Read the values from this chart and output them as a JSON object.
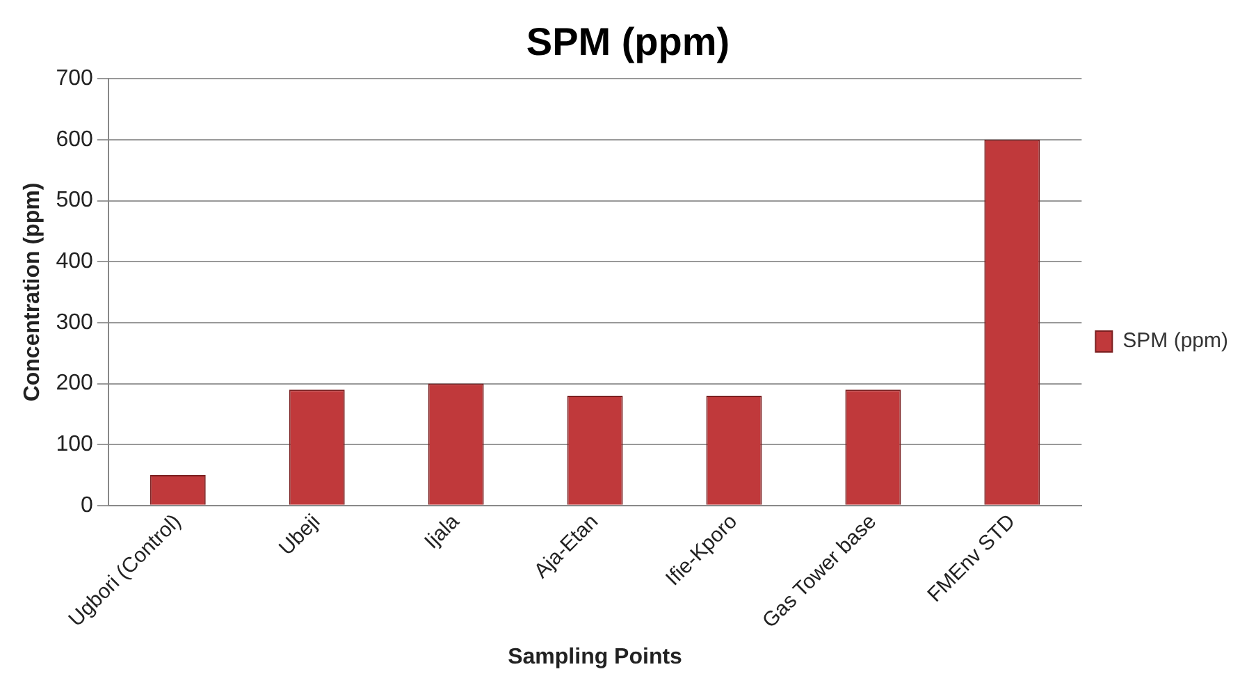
{
  "chart_data": {
    "type": "bar",
    "title": "SPM (ppm)",
    "xlabel": "Sampling Points",
    "ylabel": "Concentration (ppm)",
    "categories": [
      "Ugbori (Control)",
      "Ubeji",
      "Ijala",
      "Aja-Etan",
      "Ifie-Kporo",
      "Gas Tower base",
      "FMEnv STD"
    ],
    "series": [
      {
        "name": "SPM (ppm)",
        "color": "#c0393b",
        "values": [
          50,
          190,
          200,
          180,
          180,
          190,
          600
        ]
      }
    ],
    "ylim": [
      0,
      700
    ],
    "yticks": [
      0,
      100,
      200,
      300,
      400,
      500,
      600,
      700
    ],
    "grid": "y",
    "legend": "right"
  }
}
